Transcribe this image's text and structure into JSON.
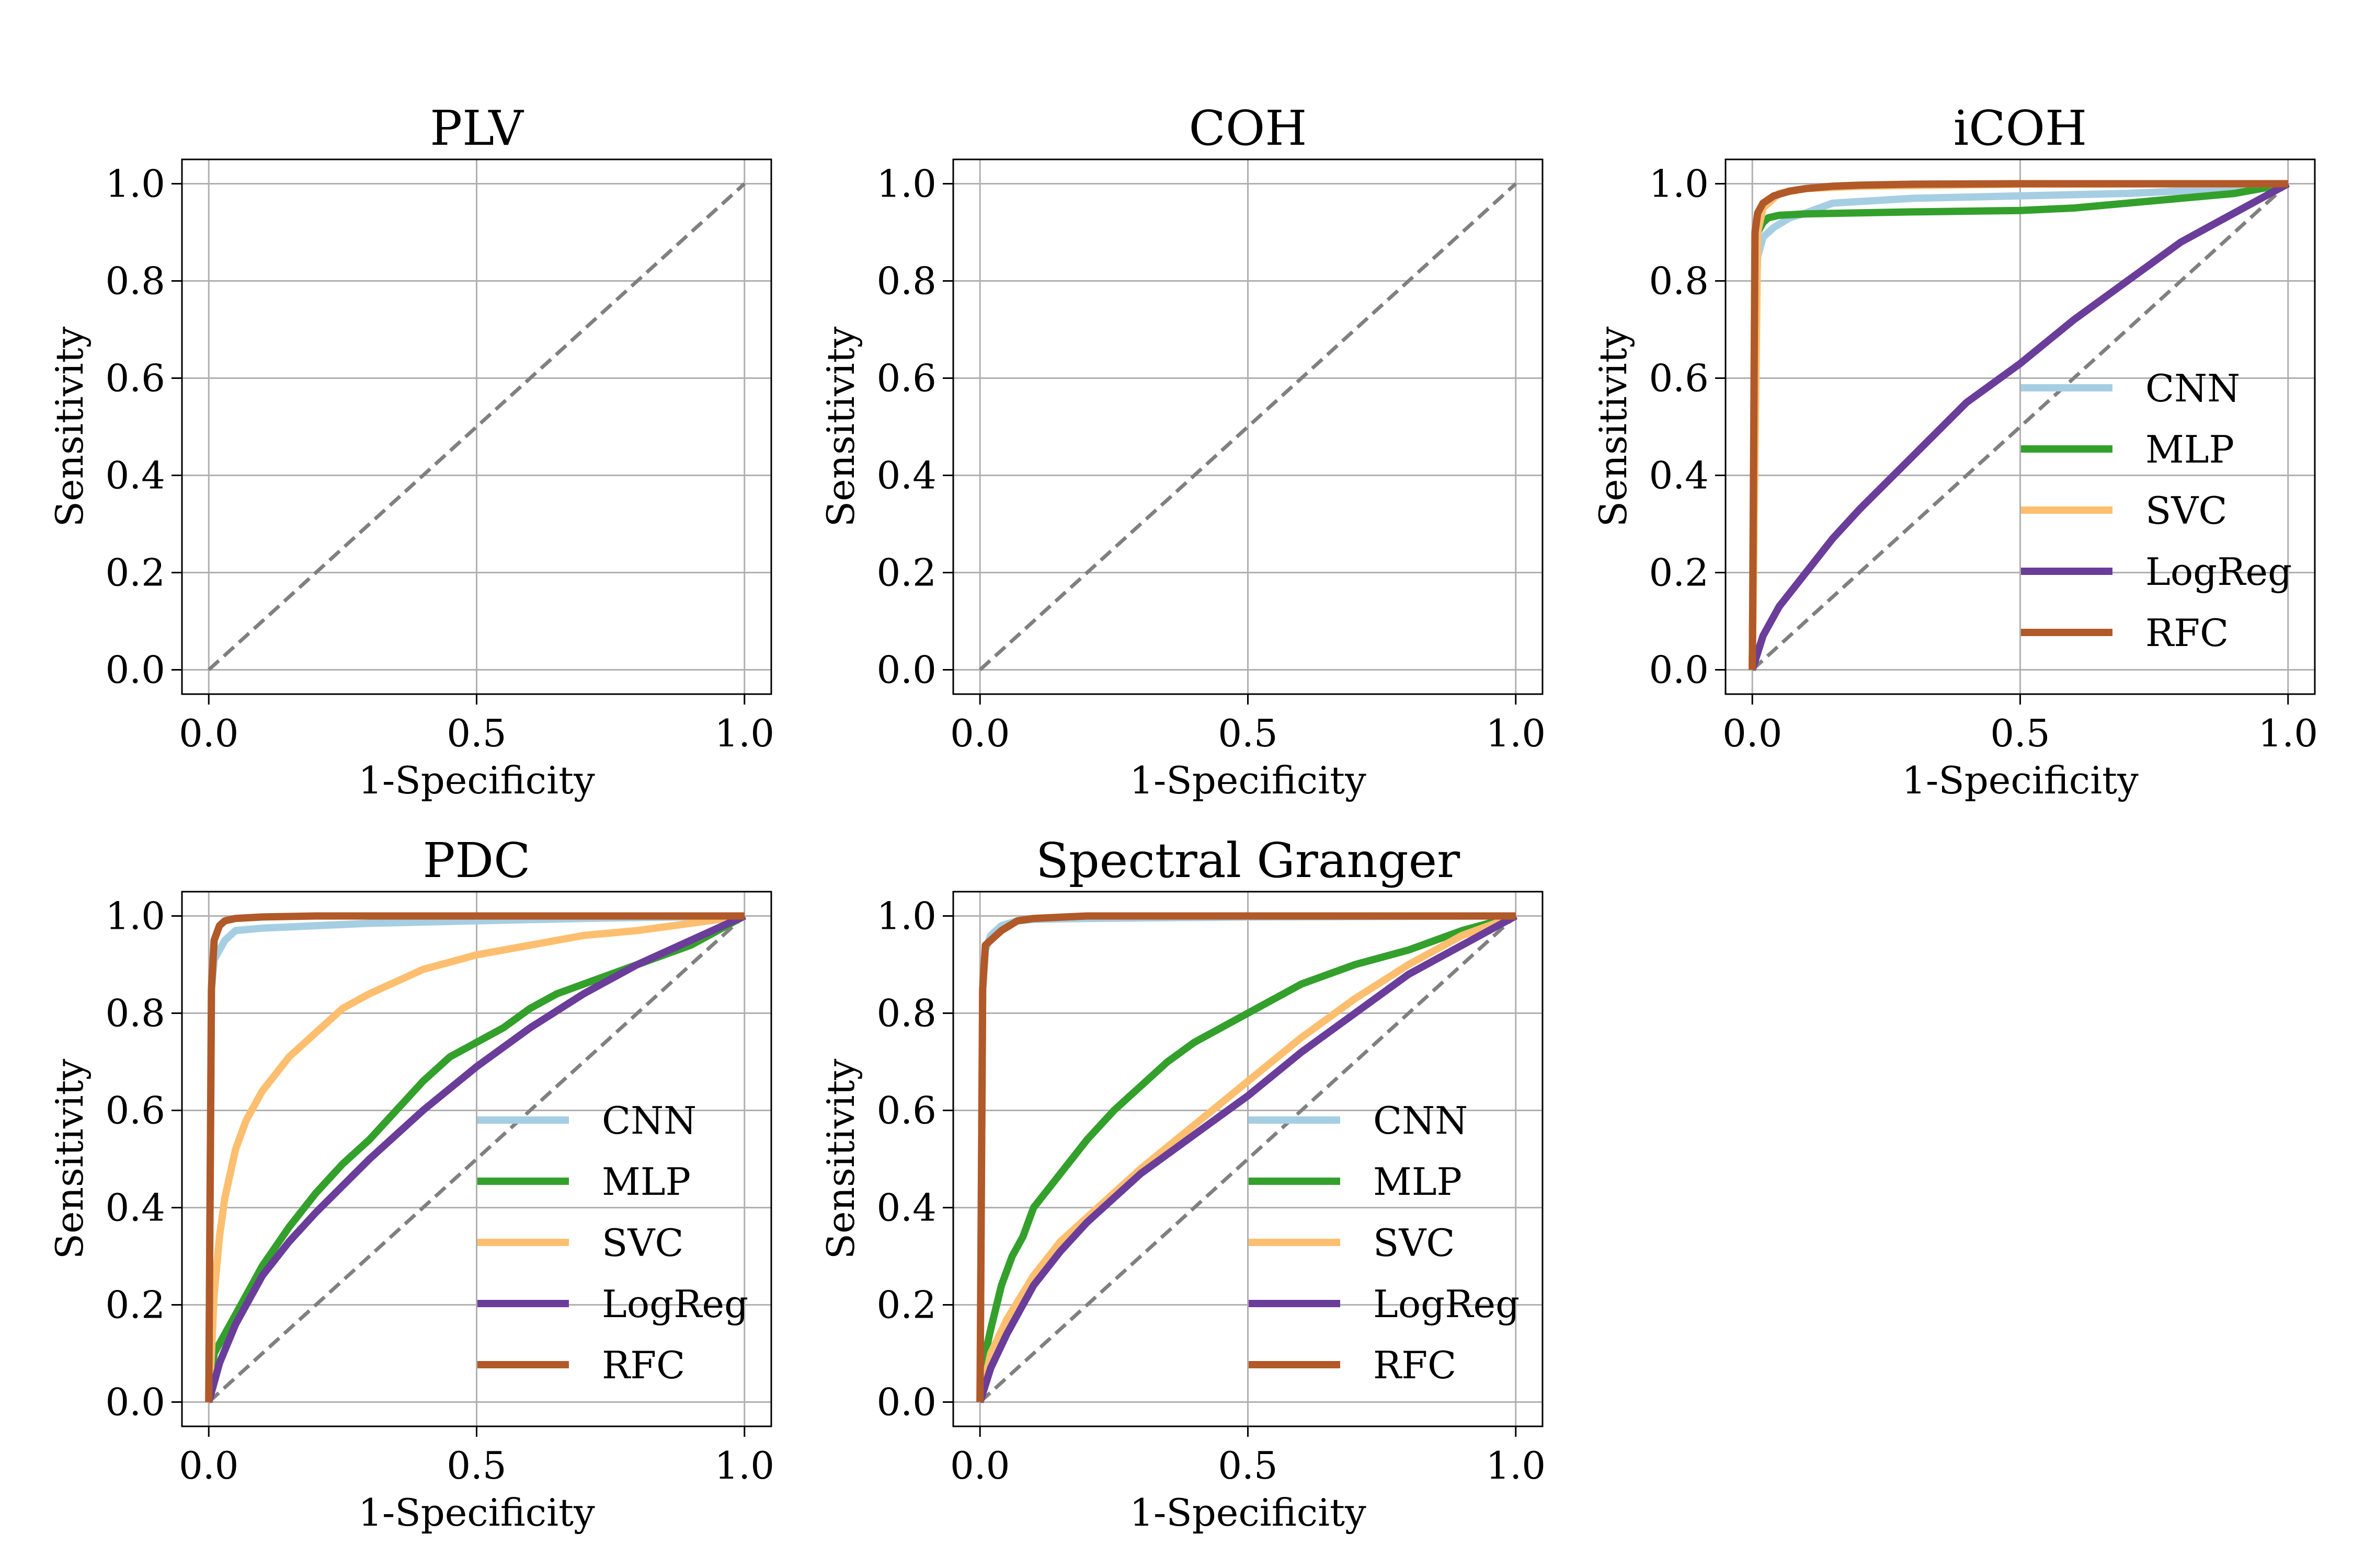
{
  "colors": {
    "CNN": "#a6cee3",
    "MLP": "#33a02c",
    "SVC": "#fdbf6f",
    "LogReg": "#6a3d9a",
    "RFC": "#b15928",
    "chance": "#808080"
  },
  "chart_data": [
    {
      "type": "line",
      "title": "PLV",
      "xlabel": "1-Specificity",
      "ylabel": "Sensitivity",
      "xlim": [
        -0.05,
        1.05
      ],
      "ylim": [
        -0.05,
        1.05
      ],
      "xticks": [
        "0.0",
        "0.5",
        "1.0"
      ],
      "yticks": [
        "0.0",
        "0.2",
        "0.4",
        "0.6",
        "0.8",
        "1.0"
      ],
      "grid": true,
      "chance_line": [
        [
          0,
          0
        ],
        [
          1,
          1
        ]
      ],
      "legend": null,
      "series": []
    },
    {
      "type": "line",
      "title": "COH",
      "xlabel": "1-Specificity",
      "ylabel": "Sensitivity",
      "xlim": [
        -0.05,
        1.05
      ],
      "ylim": [
        -0.05,
        1.05
      ],
      "xticks": [
        "0.0",
        "0.5",
        "1.0"
      ],
      "yticks": [
        "0.0",
        "0.2",
        "0.4",
        "0.6",
        "0.8",
        "1.0"
      ],
      "grid": true,
      "chance_line": [
        [
          0,
          0
        ],
        [
          1,
          1
        ]
      ],
      "legend": null,
      "series": []
    },
    {
      "type": "line",
      "title": "iCOH",
      "xlabel": "1-Specificity",
      "ylabel": "Sensitivity",
      "xlim": [
        -0.05,
        1.05
      ],
      "ylim": [
        -0.05,
        1.05
      ],
      "xticks": [
        "0.0",
        "0.5",
        "1.0"
      ],
      "yticks": [
        "0.0",
        "0.2",
        "0.4",
        "0.6",
        "0.8",
        "1.0"
      ],
      "grid": true,
      "chance_line": [
        [
          0,
          0
        ],
        [
          1,
          1
        ]
      ],
      "legend": "lower-right",
      "series": [
        {
          "name": "CNN",
          "x": [
            0,
            0.005,
            0.01,
            0.02,
            0.04,
            0.07,
            0.1,
            0.15,
            0.3,
            0.5,
            0.7,
            0.9,
            1.0
          ],
          "y": [
            0,
            0.7,
            0.85,
            0.89,
            0.91,
            0.93,
            0.94,
            0.96,
            0.97,
            0.975,
            0.98,
            0.99,
            1.0
          ]
        },
        {
          "name": "MLP",
          "x": [
            0,
            0.005,
            0.01,
            0.02,
            0.03,
            0.05,
            0.1,
            0.2,
            0.3,
            0.5,
            0.6,
            0.7,
            0.8,
            0.9,
            1.0
          ],
          "y": [
            0,
            0.6,
            0.9,
            0.92,
            0.93,
            0.935,
            0.938,
            0.94,
            0.942,
            0.945,
            0.95,
            0.96,
            0.97,
            0.98,
            1.0
          ]
        },
        {
          "name": "SVC",
          "x": [
            0,
            0.01,
            0.02,
            0.05,
            0.1,
            0.2,
            0.5,
            1.0
          ],
          "y": [
            0,
            0.9,
            0.95,
            0.98,
            0.99,
            0.995,
            0.999,
            1.0
          ]
        },
        {
          "name": "LogReg",
          "x": [
            0,
            0.02,
            0.05,
            0.1,
            0.15,
            0.2,
            0.3,
            0.4,
            0.5,
            0.6,
            0.7,
            0.8,
            0.9,
            1.0
          ],
          "y": [
            0,
            0.07,
            0.13,
            0.2,
            0.27,
            0.33,
            0.44,
            0.55,
            0.63,
            0.72,
            0.8,
            0.88,
            0.94,
            1.0
          ]
        },
        {
          "name": "RFC",
          "x": [
            0,
            0.005,
            0.01,
            0.02,
            0.04,
            0.07,
            0.1,
            0.15,
            0.2,
            0.3,
            0.5,
            1.0
          ],
          "y": [
            0,
            0.9,
            0.94,
            0.96,
            0.975,
            0.985,
            0.99,
            0.995,
            0.997,
            0.999,
            1.0,
            1.0
          ]
        }
      ]
    },
    {
      "type": "line",
      "title": "PDC",
      "xlabel": "1-Specificity",
      "ylabel": "Sensitivity",
      "xlim": [
        -0.05,
        1.05
      ],
      "ylim": [
        -0.05,
        1.05
      ],
      "xticks": [
        "0.0",
        "0.5",
        "1.0"
      ],
      "yticks": [
        "0.0",
        "0.2",
        "0.4",
        "0.6",
        "0.8",
        "1.0"
      ],
      "grid": true,
      "chance_line": [
        [
          0,
          0
        ],
        [
          1,
          1
        ]
      ],
      "legend": "lower-right",
      "series": [
        {
          "name": "CNN",
          "x": [
            0,
            0.005,
            0.01,
            0.03,
            0.05,
            0.1,
            0.2,
            0.3,
            0.5,
            0.7,
            1.0
          ],
          "y": [
            0,
            0.85,
            0.91,
            0.95,
            0.97,
            0.975,
            0.98,
            0.985,
            0.99,
            0.995,
            1.0
          ]
        },
        {
          "name": "MLP",
          "x": [
            0,
            0.01,
            0.02,
            0.05,
            0.1,
            0.15,
            0.2,
            0.25,
            0.3,
            0.35,
            0.4,
            0.45,
            0.5,
            0.55,
            0.6,
            0.65,
            0.7,
            0.8,
            0.9,
            1.0
          ],
          "y": [
            0,
            0.1,
            0.12,
            0.18,
            0.28,
            0.36,
            0.43,
            0.49,
            0.54,
            0.6,
            0.66,
            0.71,
            0.74,
            0.77,
            0.81,
            0.84,
            0.86,
            0.9,
            0.94,
            1.0
          ]
        },
        {
          "name": "SVC",
          "x": [
            0,
            0.005,
            0.01,
            0.02,
            0.03,
            0.05,
            0.07,
            0.1,
            0.15,
            0.2,
            0.25,
            0.3,
            0.4,
            0.5,
            0.6,
            0.7,
            0.8,
            0.9,
            1.0
          ],
          "y": [
            0,
            0.1,
            0.22,
            0.34,
            0.42,
            0.52,
            0.58,
            0.64,
            0.71,
            0.76,
            0.81,
            0.84,
            0.89,
            0.92,
            0.94,
            0.96,
            0.97,
            0.985,
            1.0
          ]
        },
        {
          "name": "LogReg",
          "x": [
            0,
            0.02,
            0.05,
            0.1,
            0.15,
            0.2,
            0.3,
            0.4,
            0.5,
            0.6,
            0.7,
            0.8,
            0.9,
            1.0
          ],
          "y": [
            0,
            0.08,
            0.16,
            0.26,
            0.33,
            0.39,
            0.5,
            0.6,
            0.69,
            0.77,
            0.84,
            0.9,
            0.95,
            1.0
          ]
        },
        {
          "name": "RFC",
          "x": [
            0,
            0.005,
            0.01,
            0.02,
            0.03,
            0.05,
            0.1,
            0.2,
            0.5,
            1.0
          ],
          "y": [
            0,
            0.85,
            0.95,
            0.98,
            0.99,
            0.995,
            0.998,
            1.0,
            1.0,
            1.0
          ]
        }
      ]
    },
    {
      "type": "line",
      "title": "Spectral Granger",
      "xlabel": "1-Specificity",
      "ylabel": "Sensitivity",
      "xlim": [
        -0.05,
        1.05
      ],
      "ylim": [
        -0.05,
        1.05
      ],
      "xticks": [
        "0.0",
        "0.5",
        "1.0"
      ],
      "yticks": [
        "0.0",
        "0.2",
        "0.4",
        "0.6",
        "0.8",
        "1.0"
      ],
      "grid": true,
      "chance_line": [
        [
          0,
          0
        ],
        [
          1,
          1
        ]
      ],
      "legend": "lower-right",
      "series": [
        {
          "name": "CNN",
          "x": [
            0,
            0.005,
            0.01,
            0.02,
            0.04,
            0.07,
            0.1,
            0.2,
            0.5,
            1.0
          ],
          "y": [
            0,
            0.85,
            0.93,
            0.96,
            0.98,
            0.99,
            0.993,
            0.995,
            0.998,
            1.0
          ]
        },
        {
          "name": "MLP",
          "x": [
            0,
            0.01,
            0.02,
            0.04,
            0.06,
            0.08,
            0.1,
            0.15,
            0.2,
            0.25,
            0.3,
            0.35,
            0.4,
            0.45,
            0.5,
            0.55,
            0.6,
            0.7,
            0.8,
            0.9,
            1.0
          ],
          "y": [
            0,
            0.1,
            0.15,
            0.24,
            0.3,
            0.34,
            0.4,
            0.47,
            0.54,
            0.6,
            0.65,
            0.7,
            0.74,
            0.77,
            0.8,
            0.83,
            0.86,
            0.9,
            0.93,
            0.97,
            1.0
          ]
        },
        {
          "name": "SVC",
          "x": [
            0,
            0.02,
            0.05,
            0.1,
            0.15,
            0.2,
            0.3,
            0.4,
            0.5,
            0.6,
            0.7,
            0.8,
            0.9,
            1.0
          ],
          "y": [
            0,
            0.1,
            0.17,
            0.26,
            0.33,
            0.38,
            0.48,
            0.57,
            0.66,
            0.75,
            0.83,
            0.9,
            0.96,
            1.0
          ]
        },
        {
          "name": "LogReg",
          "x": [
            0,
            0.02,
            0.05,
            0.1,
            0.15,
            0.2,
            0.3,
            0.4,
            0.5,
            0.6,
            0.7,
            0.8,
            0.9,
            1.0
          ],
          "y": [
            0,
            0.07,
            0.14,
            0.24,
            0.31,
            0.37,
            0.47,
            0.55,
            0.63,
            0.72,
            0.8,
            0.88,
            0.94,
            1.0
          ]
        },
        {
          "name": "RFC",
          "x": [
            0,
            0.005,
            0.01,
            0.02,
            0.04,
            0.07,
            0.1,
            0.2,
            0.5,
            1.0
          ],
          "y": [
            0,
            0.85,
            0.94,
            0.95,
            0.97,
            0.99,
            0.995,
            1.0,
            1.0,
            1.0
          ]
        }
      ]
    }
  ]
}
